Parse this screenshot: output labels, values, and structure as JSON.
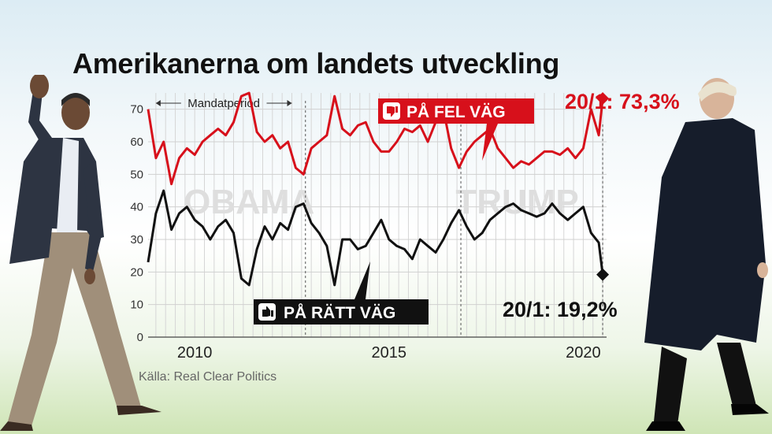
{
  "title": "Amerikanerna om landets utveckling",
  "source": "Källa: Real Clear Politics",
  "colors": {
    "wrong": "#d7101b",
    "right": "#111111",
    "grid": "#cfcfcf"
  },
  "chart_data": {
    "type": "line",
    "title": "Amerikanerna om landets utveckling",
    "x_axis": {
      "ticks": [
        2010,
        2015,
        2020
      ],
      "range": [
        2008.8,
        2020.6
      ]
    },
    "y_axis": {
      "ticks": [
        0,
        10,
        20,
        30,
        40,
        50,
        60,
        70
      ],
      "range": [
        0,
        75
      ]
    },
    "grid": true,
    "period_label": "Mandatperiod",
    "period": [
      2009.0,
      2012.5
    ],
    "term_dividers": [
      2012.85,
      2016.85
    ],
    "watermarks": [
      "OBAMA",
      "TRUMP"
    ],
    "series": [
      {
        "name": "PÅ FEL VÄG",
        "color": "#d7101b",
        "x": [
          2008.8,
          2009.0,
          2009.2,
          2009.4,
          2009.6,
          2009.8,
          2010.0,
          2010.2,
          2010.4,
          2010.6,
          2010.8,
          2011.0,
          2011.2,
          2011.4,
          2011.6,
          2011.8,
          2012.0,
          2012.2,
          2012.4,
          2012.6,
          2012.8,
          2013.0,
          2013.2,
          2013.4,
          2013.6,
          2013.8,
          2014.0,
          2014.2,
          2014.4,
          2014.6,
          2014.8,
          2015.0,
          2015.2,
          2015.4,
          2015.6,
          2015.8,
          2016.0,
          2016.2,
          2016.4,
          2016.6,
          2016.8,
          2017.0,
          2017.2,
          2017.4,
          2017.6,
          2017.8,
          2018.0,
          2018.2,
          2018.4,
          2018.6,
          2018.8,
          2019.0,
          2019.2,
          2019.4,
          2019.6,
          2019.8,
          2020.0,
          2020.2,
          2020.4,
          2020.5
        ],
        "values": [
          70,
          55,
          60,
          47,
          55,
          58,
          56,
          60,
          62,
          64,
          62,
          66,
          74,
          75,
          63,
          60,
          62,
          58,
          60,
          52,
          50,
          58,
          60,
          62,
          74,
          64,
          62,
          65,
          66,
          60,
          57,
          57,
          60,
          64,
          63,
          65,
          60,
          66,
          70,
          58,
          52,
          57,
          60,
          62,
          64,
          58,
          55,
          52,
          54,
          53,
          55,
          57,
          57,
          56,
          58,
          55,
          58,
          70,
          62,
          73.3
        ],
        "last_label": "20/1: 73,3%"
      },
      {
        "name": "PÅ RÄTT VÄG",
        "color": "#111111",
        "x": [
          2008.8,
          2009.0,
          2009.2,
          2009.4,
          2009.6,
          2009.8,
          2010.0,
          2010.2,
          2010.4,
          2010.6,
          2010.8,
          2011.0,
          2011.2,
          2011.4,
          2011.6,
          2011.8,
          2012.0,
          2012.2,
          2012.4,
          2012.6,
          2012.8,
          2013.0,
          2013.2,
          2013.4,
          2013.6,
          2013.8,
          2014.0,
          2014.2,
          2014.4,
          2014.6,
          2014.8,
          2015.0,
          2015.2,
          2015.4,
          2015.6,
          2015.8,
          2016.0,
          2016.2,
          2016.4,
          2016.6,
          2016.8,
          2017.0,
          2017.2,
          2017.4,
          2017.6,
          2017.8,
          2018.0,
          2018.2,
          2018.4,
          2018.6,
          2018.8,
          2019.0,
          2019.2,
          2019.4,
          2019.6,
          2019.8,
          2020.0,
          2020.2,
          2020.4,
          2020.5
        ],
        "values": [
          23,
          38,
          45,
          33,
          38,
          40,
          36,
          34,
          30,
          34,
          36,
          32,
          18,
          16,
          27,
          34,
          30,
          35,
          33,
          40,
          41,
          35,
          32,
          28,
          16,
          30,
          30,
          27,
          28,
          32,
          36,
          30,
          28,
          27,
          24,
          30,
          28,
          26,
          30,
          35,
          39,
          34,
          30,
          32,
          36,
          38,
          40,
          41,
          39,
          38,
          37,
          38,
          41,
          38,
          36,
          38,
          40,
          32,
          29,
          19.2
        ],
        "last_label": "20/1: 19,2%"
      }
    ]
  }
}
